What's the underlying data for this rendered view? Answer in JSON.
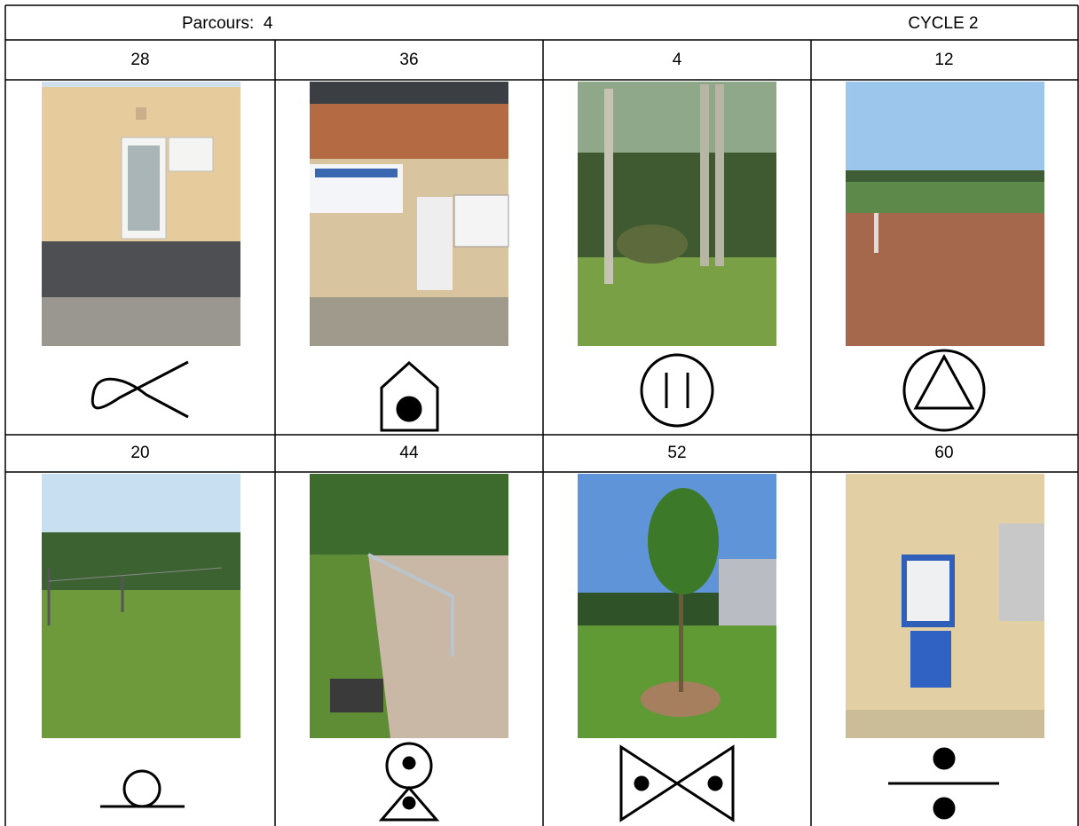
{
  "header": {
    "title": "Parcours:  4",
    "cycle": "CYCLE 2"
  },
  "table": {
    "rows": [
      [
        "28",
        "36",
        "4",
        "12"
      ],
      [
        "20",
        "44",
        "52",
        "60"
      ]
    ]
  }
}
